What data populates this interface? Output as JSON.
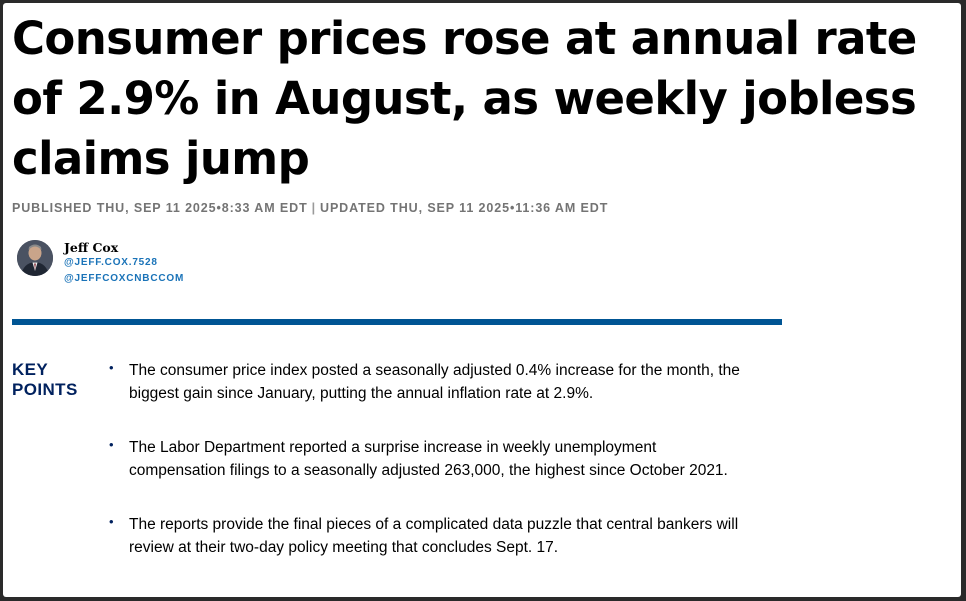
{
  "article": {
    "headline": "Consumer prices rose at annual rate of 2.9% in August, as weekly jobless claims jump",
    "published": "PUBLISHED THU, SEP 11 2025•8:33 AM EDT",
    "separator": "|",
    "updated": "UPDATED THU, SEP 11 2025•11:36 AM EDT"
  },
  "author": {
    "name": "Jeff Cox",
    "handles": [
      "@JEFF.COX.7528",
      "@JEFFCOXCNBCCOM"
    ],
    "link_color": "#1a73b8"
  },
  "key_points": {
    "title_line1": "KEY",
    "title_line2": "POINTS",
    "bullet_symbol": "•",
    "items": [
      "The consumer price index posted a seasonally adjusted 0.4% increase for the month, the biggest gain since January, putting the annual inflation rate at 2.9%.",
      "The Labor Department reported a surprise increase in weekly unemployment compensation filings to a seasonally adjusted 263,000, the highest since October 2021.",
      "The reports provide the final pieces of a complicated data puzzle that central bankers will review at their two-day policy meeting that concludes Sept. 17."
    ]
  },
  "colors": {
    "rule": "#005594",
    "key_points_title": "#00215e",
    "timestamp": "#747474"
  }
}
